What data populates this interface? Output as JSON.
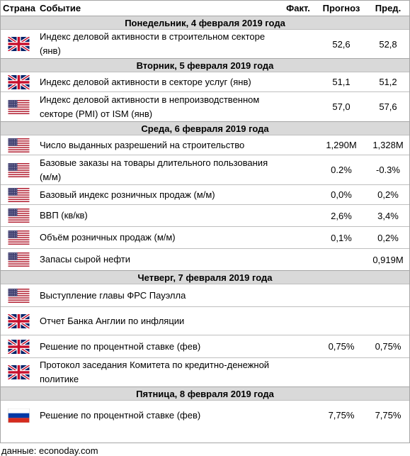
{
  "header": {
    "country": "Страна",
    "event": "Событие",
    "actual": "Факт.",
    "forecast": "Прогноз",
    "previous": "Пред."
  },
  "days": [
    {
      "title": "Понедельник, 4 февраля 2019 года",
      "events": [
        {
          "flag": "uk-flag-icon",
          "name": "Индекс деловой активности в строительном секторе (янв)",
          "actual": "",
          "forecast": "52,6",
          "previous": "52,8"
        }
      ]
    },
    {
      "title": "Вторник, 5 февраля 2019 года",
      "events": [
        {
          "flag": "uk-flag-icon",
          "name": "Индекс деловой активности в секторе услуг (янв)",
          "actual": "",
          "forecast": "51,1",
          "previous": "51,2"
        },
        {
          "flag": "us-flag-icon",
          "name": "Индекс деловой активности в непроизводственном секторе (PMI) от ISM (янв)",
          "actual": "",
          "forecast": "57,0",
          "previous": "57,6"
        }
      ]
    },
    {
      "title": "Среда, 6 февраля 2019 года",
      "events": [
        {
          "flag": "us-flag-icon",
          "name": "Число выданных разрешений на строительство",
          "actual": "",
          "forecast": "1,290M",
          "previous": "1,328M"
        },
        {
          "flag": "us-flag-icon",
          "name": "Базовые заказы на товары длительного пользования (м/м)",
          "actual": "",
          "forecast": "0.2%",
          "previous": "-0.3%"
        },
        {
          "flag": "us-flag-icon",
          "name": "Базовый индекс розничных продаж (м/м)",
          "actual": "",
          "forecast": "0,0%",
          "previous": "0,2%"
        },
        {
          "flag": "us-flag-icon",
          "name": "ВВП (кв/кв)",
          "actual": "",
          "forecast": "2,6%",
          "previous": "3,4%"
        },
        {
          "flag": "us-flag-icon",
          "name": "Объём розничных продаж (м/м)",
          "actual": "",
          "forecast": "0,1%",
          "previous": "0,2%"
        },
        {
          "flag": "us-flag-icon",
          "name": "Запасы сырой нефти",
          "actual": "",
          "forecast": "",
          "previous": "0,919M"
        }
      ]
    },
    {
      "title": "Четверг, 7 февраля 2019 года",
      "events": [
        {
          "flag": "us-flag-icon",
          "name": "Выступление главы ФРС Пауэлла",
          "actual": "",
          "forecast": "",
          "previous": ""
        },
        {
          "flag": "uk-flag-icon",
          "name": "Отчет Банка Англии по инфляции",
          "actual": "",
          "forecast": "",
          "previous": ""
        },
        {
          "flag": "uk-flag-icon",
          "name": "Решение по процентной ставке (фев)",
          "actual": "",
          "forecast": "0,75%",
          "previous": "0,75%"
        },
        {
          "flag": "uk-flag-icon",
          "name": "Протокол заседания Комитета по кредитно-денежной политике",
          "actual": "",
          "forecast": "",
          "previous": ""
        }
      ]
    },
    {
      "title": "Пятница, 8 февраля 2019 года",
      "events": [
        {
          "flag": "ru-flag-icon",
          "name": "Решение по процентной ставке (фев)",
          "actual": "",
          "forecast": "7,75%",
          "previous": "7,75%"
        }
      ]
    }
  ],
  "source": "данные: econoday.com",
  "colors": {
    "day_row_bg": "#d9d9d9",
    "border": "#a6a6a6"
  }
}
